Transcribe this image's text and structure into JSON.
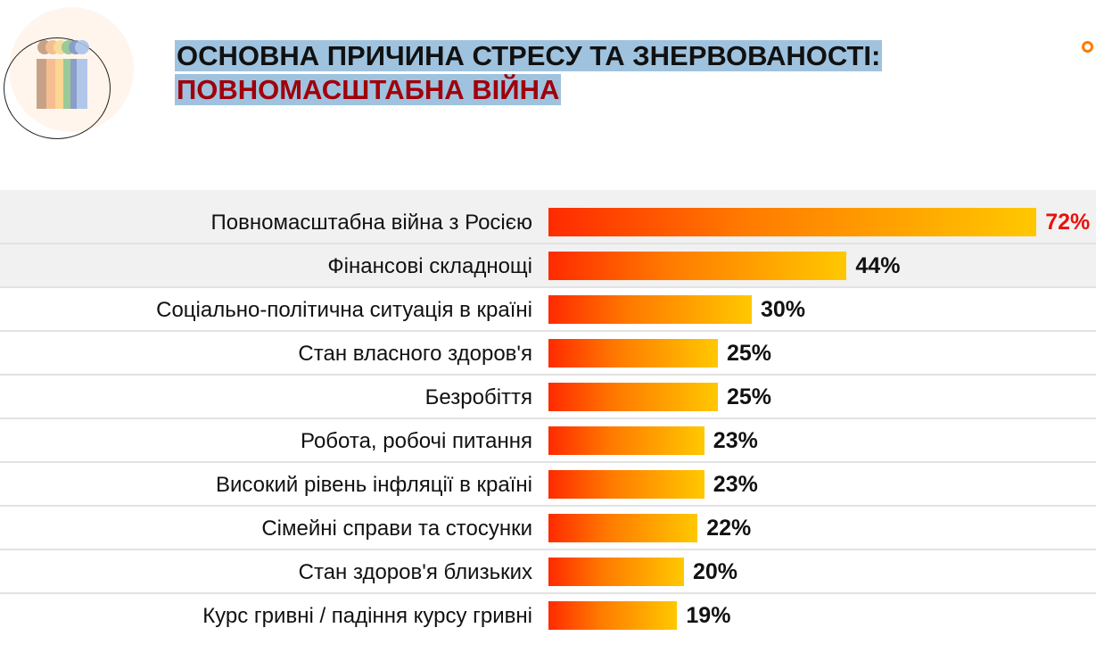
{
  "header": {
    "title_line1": "ОСНОВНА ПРИЧИНА СТРЕСУ ТА ЗНЕРВОВАНОСТІ:",
    "title_line2": "ПОВНОМАСШТАБНА ВІЙНА"
  },
  "colors": {
    "bar_start": "#ff2a00",
    "bar_end": "#ffc800",
    "highlight_value": "#e8120c",
    "title_highlight": "#9fc3df",
    "title_line2": "#a0000a"
  },
  "chart_data": {
    "type": "bar",
    "orientation": "horizontal",
    "categories": [
      "Повномасштабна війна з Росією",
      "Фінансові складнощі",
      "Соціально-політична ситуація в країні",
      "Стан власного здоров'я",
      "Безробіття",
      "Робота, робочі питання",
      "Високий рівень інфляції в країні",
      "Сімейні справи та стосунки",
      "Стан здоров'я близьких",
      "Курс гривні / падіння курсу гривні"
    ],
    "values": [
      72,
      44,
      30,
      25,
      25,
      23,
      23,
      22,
      20,
      19
    ],
    "value_labels": [
      "72%",
      "44%",
      "30%",
      "25%",
      "25%",
      "23%",
      "23%",
      "22%",
      "20%",
      "19%"
    ],
    "unit": "%",
    "grid": false
  }
}
